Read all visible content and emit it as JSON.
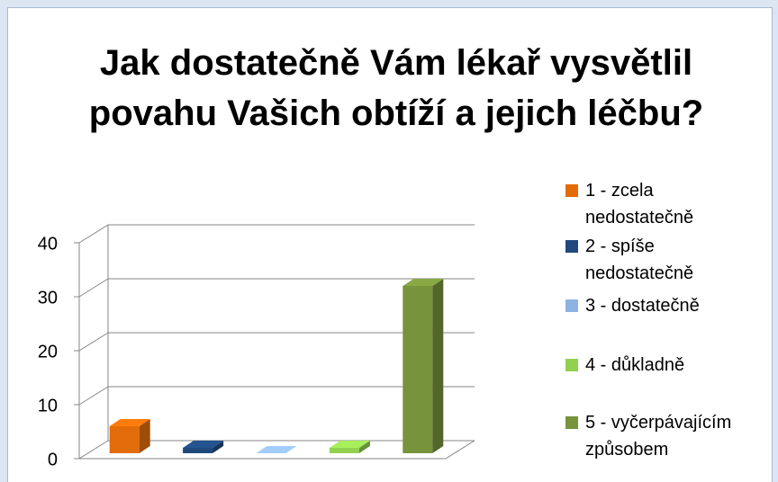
{
  "chart_data": {
    "type": "bar3d",
    "title": "Jak dostatečně Vám lékař vysvětlil povahu Vašich obtíží a jejich léčbu?",
    "categories": [
      "1 - zcela nedostatečně",
      "2 - spíše nedostatečně",
      "3 - dostatečně",
      "4 - důkladně",
      "5 - vyčerpávajícím způsobem"
    ],
    "values": [
      5,
      1,
      0,
      1,
      31
    ],
    "colors": [
      "#e36c0a",
      "#1f497d",
      "#8db3e2",
      "#92d050",
      "#77933c"
    ],
    "ylim": [
      0,
      40
    ],
    "yticks": [
      0,
      10,
      20,
      30,
      40
    ],
    "grid": true,
    "legend": "right"
  }
}
